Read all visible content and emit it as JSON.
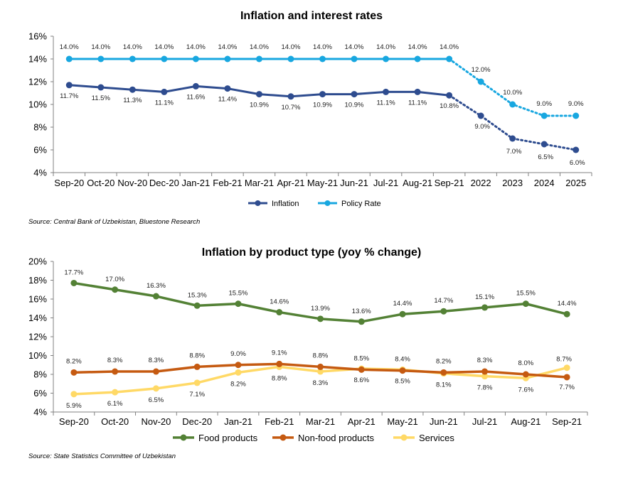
{
  "chart_data": [
    {
      "type": "line",
      "title": "Inflation and interest rates",
      "xlabel": "",
      "ylabel": "",
      "categories": [
        "Sep-20",
        "Oct-20",
        "Nov-20",
        "Dec-20",
        "Jan-21",
        "Feb-21",
        "Mar-21",
        "Apr-21",
        "May-21",
        "Jun-21",
        "Jul-21",
        "Aug-21",
        "Sep-21",
        "2022",
        "2023",
        "2024",
        "2025"
      ],
      "y_ticks": [
        "4%",
        "6%",
        "8%",
        "10%",
        "12%",
        "14%",
        "16%"
      ],
      "ylim": [
        4,
        16
      ],
      "grid": "none",
      "legend_position": "bottom",
      "forecast_from_index": 12,
      "series": [
        {
          "name": "Inflation",
          "color": "#2E4C8F",
          "values": [
            11.7,
            11.5,
            11.3,
            11.1,
            11.6,
            11.4,
            10.9,
            10.7,
            10.9,
            10.9,
            11.1,
            11.1,
            10.8,
            9.0,
            7.0,
            6.5,
            6.0
          ],
          "labels": [
            "11.7%",
            "11.5%",
            "11.3%",
            "11.1%",
            "11.6%",
            "11.4%",
            "10.9%",
            "10.7%",
            "10.9%",
            "10.9%",
            "11.1%",
            "11.1%",
            "10.8%",
            "9.0%",
            "7.0%",
            "6.5%",
            "6.0%"
          ]
        },
        {
          "name": "Policy Rate",
          "color": "#18A7E0",
          "values": [
            14.0,
            14.0,
            14.0,
            14.0,
            14.0,
            14.0,
            14.0,
            14.0,
            14.0,
            14.0,
            14.0,
            14.0,
            14.0,
            12.0,
            10.0,
            9.0,
            9.0
          ],
          "labels": [
            "14.0%",
            "14.0%",
            "14.0%",
            "14.0%",
            "14.0%",
            "14.0%",
            "14.0%",
            "14.0%",
            "14.0%",
            "14.0%",
            "14.0%",
            "14.0%",
            "14.0%",
            "12.0%",
            "10.0%",
            "9.0%",
            "9.0%"
          ]
        }
      ],
      "source": "Source: Central Bank of Uzbekistan, Bluestone Research"
    },
    {
      "type": "line",
      "title": "Inflation by product type (yoy % change)",
      "xlabel": "",
      "ylabel": "",
      "categories": [
        "Sep-20",
        "Oct-20",
        "Nov-20",
        "Dec-20",
        "Jan-21",
        "Feb-21",
        "Mar-21",
        "Apr-21",
        "May-21",
        "Jun-21",
        "Jul-21",
        "Aug-21",
        "Sep-21"
      ],
      "y_ticks": [
        "4%",
        "6%",
        "8%",
        "10%",
        "12%",
        "14%",
        "16%",
        "18%",
        "20%"
      ],
      "ylim": [
        4,
        20
      ],
      "grid": "none",
      "legend_position": "bottom",
      "series": [
        {
          "name": "Food products",
          "color": "#538135",
          "values": [
            17.7,
            17.0,
            16.3,
            15.3,
            15.5,
            14.6,
            13.9,
            13.6,
            14.4,
            14.7,
            15.1,
            15.5,
            14.4
          ],
          "labels": [
            "17.7%",
            "17.0%",
            "16.3%",
            "15.3%",
            "15.5%",
            "14.6%",
            "13.9%",
            "13.6%",
            "14.4%",
            "14.7%",
            "15.1%",
            "15.5%",
            "14.4%"
          ]
        },
        {
          "name": "Non-food products",
          "color": "#C55A11",
          "values": [
            8.2,
            8.3,
            8.3,
            8.8,
            9.0,
            9.1,
            8.8,
            8.5,
            8.4,
            8.2,
            8.3,
            8.0,
            7.7
          ],
          "labels": [
            "8.2%",
            "8.3%",
            "8.3%",
            "8.8%",
            "9.0%",
            "9.1%",
            "8.8%",
            "8.5%",
            "8.4%",
            "8.2%",
            "8.3%",
            "8.0%",
            "7.7%"
          ]
        },
        {
          "name": "Services",
          "color": "#FFD966",
          "values": [
            5.9,
            6.1,
            6.5,
            7.1,
            8.2,
            8.8,
            8.3,
            8.6,
            8.5,
            8.1,
            7.8,
            7.6,
            8.7
          ],
          "labels": [
            "5.9%",
            "6.1%",
            "6.5%",
            "7.1%",
            "8.2%",
            "8.8%",
            "8.3%",
            "8.6%",
            "8.5%",
            "8.1%",
            "7.8%",
            "7.6%",
            "8.7%"
          ]
        }
      ],
      "source": "Source: State Statistics Committee of Uzbekistan"
    }
  ]
}
